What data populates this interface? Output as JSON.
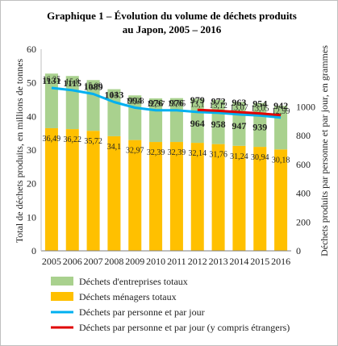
{
  "chart_data": {
    "type": "bar",
    "title_line1": "Graphique  1 – Évolution  du volume de déchets produits",
    "title_line2": "au Japon,  2005 – 2016",
    "ylabel_left": "Total de déchets produits, en millions de tonnes",
    "ylabel_right": "Déchets produits par personne et par jour, en grammes",
    "categories": [
      "2005",
      "2006",
      "2007",
      "2008",
      "2009",
      "2010",
      "2011",
      "2012",
      "2013",
      "2014",
      "2015",
      "2016"
    ],
    "left_axis": {
      "min": 0,
      "max": 60,
      "ticks": [
        0,
        10,
        20,
        30,
        40,
        50,
        60
      ]
    },
    "right_axis": {
      "min": 0,
      "max": 1400,
      "ticks": [
        0,
        200,
        400,
        600,
        800,
        1000
      ]
    },
    "stacked_bars": [
      {
        "name": "Déchets ménagers totaux",
        "color": "#FFC000",
        "values": [
          36.49,
          36.22,
          35.72,
          34.1,
          32.97,
          32.39,
          32.39,
          32.14,
          31.76,
          31.24,
          30.94,
          30.18
        ],
        "labels": [
          "36,49",
          "36,22",
          "35,72",
          "34,1",
          "32,97",
          "32,39",
          "32,39",
          "32,14",
          "31,76",
          "31,24",
          "30,94",
          "30,18"
        ]
      },
      {
        "name": "Déchets d'entreprises totaux",
        "color": "#A9D18E",
        "values": [
          16.25,
          15.8,
          15.09,
          14,
          13.28,
          12.97,
          13.05,
          13.1,
          13.12,
          13.07,
          13.05,
          12.99
        ],
        "labels": [
          "16,25",
          "15,8",
          "15,09",
          "14",
          "13,28",
          "12,97",
          "13,05",
          "13,1",
          "13,12",
          "13,07",
          "13,05",
          "12,99"
        ]
      }
    ],
    "lines": [
      {
        "name": "Déchets par personne et par jour",
        "color": "#00B0F0",
        "values": [
          1131,
          1115,
          1089,
          1033,
          994,
          976,
          976,
          964,
          958,
          947,
          939,
          925
        ],
        "labels": [
          "1131",
          "1115",
          "1089",
          "1033",
          "994",
          "976",
          "976",
          "964",
          "958",
          "947",
          "939",
          ""
        ]
      },
      {
        "name": "Déchets par personne et par jour (y compris étrangers)",
        "color": "#E00000",
        "values": [
          null,
          null,
          null,
          null,
          null,
          null,
          null,
          979,
          972,
          963,
          954,
          942
        ],
        "labels": [
          "",
          "",
          "",
          "",
          "",
          "",
          "",
          "979",
          "972",
          "963",
          "954",
          "942"
        ]
      }
    ],
    "legend": [
      {
        "label": "Déchets d'entreprises totaux",
        "kind": "box",
        "color": "#A9D18E"
      },
      {
        "label": "Déchets ménagers totaux",
        "kind": "box",
        "color": "#FFC000"
      },
      {
        "label": "Déchets par personne et par jour",
        "kind": "line",
        "color": "#00B0F0"
      },
      {
        "label": "Déchets par personne et par jour (y compris étrangers)",
        "kind": "line",
        "color": "#E00000"
      }
    ],
    "legend_position": "bottom",
    "grid": false
  }
}
